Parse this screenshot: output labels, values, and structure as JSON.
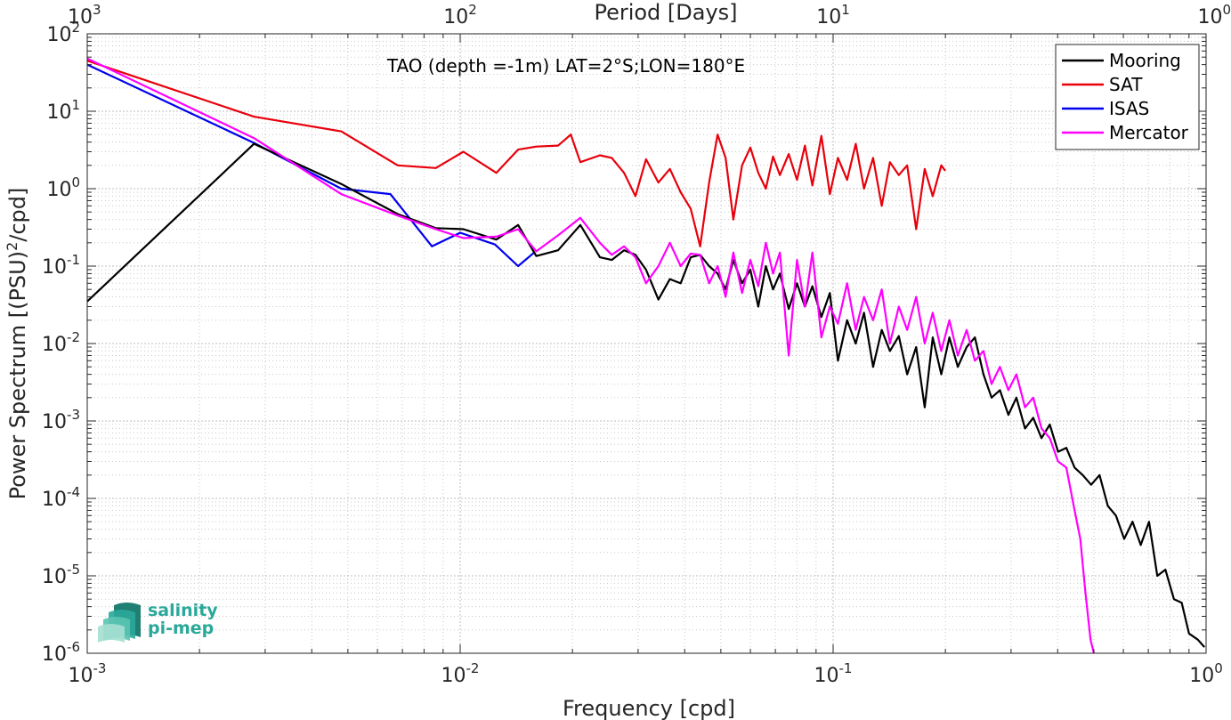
{
  "chart_data": {
    "type": "line",
    "title": "TAO (depth =-1m) LAT=2°S;LON=180°E",
    "xlabel": "Frequency [cpd]",
    "ylabel": "Power Spectrum [(PSU)",
    "ylabel_sup": "2",
    "ylabel_tail": "/cpd]",
    "x2label": "Period [Days]",
    "xscale": "log",
    "yscale": "log",
    "xlim": [
      0.001,
      1
    ],
    "ylim": [
      1e-06,
      100
    ],
    "grid": true,
    "legend_position": "top-right",
    "x_ticks": [
      {
        "base": "10",
        "exp": "-3",
        "value": 0.001
      },
      {
        "base": "10",
        "exp": "-2",
        "value": 0.01
      },
      {
        "base": "10",
        "exp": "-1",
        "value": 0.1
      },
      {
        "base": "10",
        "exp": "0",
        "value": 1
      }
    ],
    "y_ticks": [
      {
        "base": "10",
        "exp": "-6",
        "value": 1e-06
      },
      {
        "base": "10",
        "exp": "-5",
        "value": 1e-05
      },
      {
        "base": "10",
        "exp": "-4",
        "value": 0.0001
      },
      {
        "base": "10",
        "exp": "-3",
        "value": 0.001
      },
      {
        "base": "10",
        "exp": "-2",
        "value": 0.01
      },
      {
        "base": "10",
        "exp": "-1",
        "value": 0.1
      },
      {
        "base": "10",
        "exp": "0",
        "value": 1
      },
      {
        "base": "10",
        "exp": "1",
        "value": 10
      },
      {
        "base": "10",
        "exp": "2",
        "value": 100
      }
    ],
    "x2_ticks": [
      {
        "base": "10",
        "exp": "3",
        "value": 0.001
      },
      {
        "base": "10",
        "exp": "2",
        "value": 0.01
      },
      {
        "base": "10",
        "exp": "1",
        "value": 0.1
      },
      {
        "base": "10",
        "exp": "0",
        "value": 1
      }
    ],
    "series": [
      {
        "name": "Mooring",
        "color": "#000000",
        "x": [
          0.001,
          0.0028,
          0.0048,
          0.0068,
          0.0086,
          0.0102,
          0.0125,
          0.0143,
          0.016,
          0.0183,
          0.021,
          0.0237,
          0.0255,
          0.0275,
          0.0295,
          0.0315,
          0.034,
          0.0365,
          0.039,
          0.0415,
          0.044,
          0.0465,
          0.049,
          0.0515,
          0.054,
          0.057,
          0.06,
          0.063,
          0.066,
          0.069,
          0.072,
          0.076,
          0.08,
          0.084,
          0.088,
          0.093,
          0.098,
          0.103,
          0.109,
          0.115,
          0.121,
          0.128,
          0.135,
          0.142,
          0.15,
          0.158,
          0.167,
          0.176,
          0.185,
          0.195,
          0.205,
          0.216,
          0.228,
          0.24,
          0.253,
          0.266,
          0.28,
          0.295,
          0.31,
          0.327,
          0.344,
          0.362,
          0.381,
          0.401,
          0.422,
          0.444,
          0.467,
          0.492,
          0.518,
          0.545,
          0.573,
          0.603,
          0.635,
          0.668,
          0.703,
          0.74,
          0.778,
          0.82,
          0.86,
          0.9,
          0.95,
          0.99
        ],
        "y": [
          0.035,
          3.8,
          1.15,
          0.47,
          0.31,
          0.3,
          0.22,
          0.34,
          0.135,
          0.16,
          0.34,
          0.13,
          0.12,
          0.16,
          0.14,
          0.09,
          0.037,
          0.068,
          0.06,
          0.13,
          0.14,
          0.1,
          0.08,
          0.05,
          0.12,
          0.06,
          0.09,
          0.03,
          0.1,
          0.05,
          0.08,
          0.028,
          0.06,
          0.03,
          0.055,
          0.022,
          0.045,
          0.006,
          0.02,
          0.01,
          0.025,
          0.005,
          0.015,
          0.008,
          0.0125,
          0.004,
          0.009,
          0.0015,
          0.012,
          0.004,
          0.012,
          0.005,
          0.009,
          0.012,
          0.004,
          0.002,
          0.0025,
          0.0012,
          0.002,
          0.0008,
          0.0011,
          0.0006,
          0.0009,
          0.0004,
          0.00045,
          0.00025,
          0.0002,
          0.00015,
          0.0002,
          8e-05,
          6e-05,
          3e-05,
          5e-05,
          2.5e-05,
          5e-05,
          1e-05,
          1.2e-05,
          5e-06,
          4.5e-06,
          1.8e-06,
          1.5e-06,
          1.2e-06
        ]
      },
      {
        "name": "SAT",
        "color": "#e8000b",
        "x": [
          0.001,
          0.0028,
          0.0048,
          0.0068,
          0.0086,
          0.0102,
          0.0125,
          0.0143,
          0.016,
          0.0183,
          0.0198,
          0.021,
          0.0237,
          0.0255,
          0.0275,
          0.0295,
          0.0315,
          0.034,
          0.0365,
          0.039,
          0.0415,
          0.044,
          0.0465,
          0.049,
          0.0515,
          0.054,
          0.057,
          0.06,
          0.063,
          0.066,
          0.069,
          0.072,
          0.076,
          0.08,
          0.084,
          0.088,
          0.093,
          0.098,
          0.103,
          0.109,
          0.115,
          0.121,
          0.128,
          0.135,
          0.142,
          0.15,
          0.158,
          0.167,
          0.176,
          0.185,
          0.195,
          0.2
        ],
        "y": [
          45,
          8.5,
          5.5,
          2.0,
          1.85,
          3.0,
          1.6,
          3.2,
          3.5,
          3.6,
          5.0,
          2.2,
          2.7,
          2.5,
          1.6,
          0.8,
          2.4,
          1.2,
          1.8,
          0.9,
          0.55,
          0.18,
          1.2,
          5.0,
          2.5,
          0.4,
          2.0,
          3.4,
          1.6,
          1.0,
          2.6,
          1.5,
          2.8,
          1.3,
          3.6,
          1.1,
          4.8,
          0.85,
          2.5,
          1.3,
          3.8,
          1.0,
          2.5,
          0.6,
          2.2,
          1.5,
          2.0,
          0.3,
          1.8,
          0.8,
          2.0,
          1.7
        ]
      },
      {
        "name": "ISAS",
        "color": "#0000ee",
        "x": [
          0.001,
          0.0028,
          0.0048,
          0.0065,
          0.0084,
          0.01,
          0.0124,
          0.0143,
          0.0158
        ],
        "y": [
          40,
          3.9,
          1.0,
          0.85,
          0.18,
          0.27,
          0.19,
          0.1,
          0.15
        ]
      },
      {
        "name": "Mercator",
        "color": "#ff00ff",
        "x": [
          0.001,
          0.0028,
          0.0048,
          0.0068,
          0.0086,
          0.0102,
          0.0125,
          0.0143,
          0.016,
          0.0183,
          0.021,
          0.0237,
          0.0255,
          0.0275,
          0.0295,
          0.0315,
          0.034,
          0.0365,
          0.039,
          0.0415,
          0.044,
          0.0465,
          0.049,
          0.0515,
          0.054,
          0.057,
          0.06,
          0.063,
          0.066,
          0.069,
          0.072,
          0.076,
          0.08,
          0.084,
          0.088,
          0.093,
          0.098,
          0.103,
          0.109,
          0.115,
          0.121,
          0.128,
          0.135,
          0.142,
          0.15,
          0.158,
          0.167,
          0.176,
          0.185,
          0.195,
          0.205,
          0.216,
          0.228,
          0.24,
          0.253,
          0.266,
          0.28,
          0.295,
          0.31,
          0.327,
          0.344,
          0.362,
          0.381,
          0.401,
          0.422,
          0.444,
          0.46,
          0.475,
          0.49,
          0.5
        ],
        "y": [
          48,
          4.5,
          0.85,
          0.45,
          0.3,
          0.23,
          0.24,
          0.3,
          0.155,
          0.25,
          0.42,
          0.2,
          0.14,
          0.18,
          0.13,
          0.06,
          0.1,
          0.2,
          0.1,
          0.145,
          0.14,
          0.06,
          0.1,
          0.04,
          0.15,
          0.045,
          0.12,
          0.055,
          0.2,
          0.08,
          0.15,
          0.007,
          0.12,
          0.03,
          0.15,
          0.012,
          0.03,
          0.018,
          0.06,
          0.015,
          0.04,
          0.02,
          0.05,
          0.01,
          0.03,
          0.015,
          0.04,
          0.01,
          0.025,
          0.008,
          0.02,
          0.007,
          0.015,
          0.006,
          0.008,
          0.003,
          0.005,
          0.0025,
          0.004,
          0.0015,
          0.002,
          0.0008,
          0.0006,
          0.0003,
          0.00025,
          7e-05,
          3e-05,
          6e-06,
          1.5e-06,
          1e-06
        ]
      }
    ]
  },
  "logo": {
    "line1": "salinity",
    "line2": "pi-mep",
    "colors": [
      "#1f7f73",
      "#2aa89a",
      "#5cc4b3",
      "#a5dfd2"
    ]
  }
}
